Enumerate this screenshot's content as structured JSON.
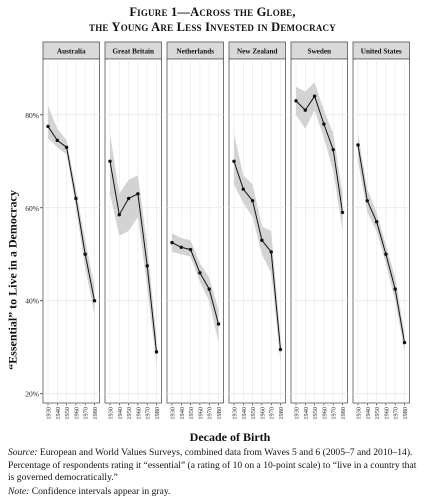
{
  "figure": {
    "title_line1": "Figure 1—Across the Globe,",
    "title_line2": "the Young Are Less Invested in Democracy",
    "source_label": "Source:",
    "source_text": " European and World Values Surveys, combined data from Waves 5 and 6 (2005–7 and 2010–14). Percentage of respondents rating it “essential” (a rating of 10 on a 10-point scale) to “live in a country that is governed democratically.”",
    "note_label": "Note:",
    "note_text": " Confidence intervals appear in gray."
  },
  "colors": {
    "confidence_band": "#d3d3d3",
    "line": "#111111",
    "panel_header": "#d9d9d9",
    "gridline": "#e6e6e6"
  },
  "chart_data": {
    "type": "line",
    "xlabel": "Decade of Birth",
    "ylabel": "“Essential” to Live in a Democracy",
    "ylim": [
      18,
      92
    ],
    "yticks": [
      20,
      40,
      60,
      80
    ],
    "ytick_labels": [
      "20%",
      "40%",
      "60%",
      "80%"
    ],
    "x": [
      "1930",
      "1940",
      "1950",
      "1960",
      "1970",
      "1980"
    ],
    "grid": true,
    "series": [
      {
        "name": "Australia",
        "values": [
          77.5,
          74.5,
          73,
          62,
          50,
          40
        ],
        "ci_low": [
          75,
          73,
          71.5,
          60,
          47,
          37
        ],
        "ci_high": [
          82,
          77,
          74.5,
          64,
          53,
          43
        ]
      },
      {
        "name": "Great Britain",
        "values": [
          70,
          58.5,
          62,
          63,
          47.5,
          29
        ],
        "ci_low": [
          63,
          54,
          55,
          58,
          43,
          26
        ],
        "ci_high": [
          76,
          63,
          66,
          67,
          52,
          32
        ]
      },
      {
        "name": "Netherlands",
        "values": [
          52.5,
          51.5,
          51,
          46,
          42.5,
          35
        ],
        "ci_low": [
          50.5,
          50,
          49.5,
          44,
          40,
          31
        ],
        "ci_high": [
          54.5,
          53.5,
          53,
          48,
          45,
          38
        ]
      },
      {
        "name": "New Zealand",
        "values": [
          70,
          64,
          61.5,
          53,
          50.5,
          29.5
        ],
        "ci_low": [
          65,
          61,
          58,
          50,
          46,
          27
        ],
        "ci_high": [
          76,
          67,
          65,
          56,
          55,
          32
        ]
      },
      {
        "name": "Sweden",
        "values": [
          83,
          81,
          84,
          78,
          72.5,
          59
        ],
        "ci_low": [
          80,
          77,
          81,
          75,
          68,
          55
        ],
        "ci_high": [
          86,
          85,
          87,
          81,
          76,
          63
        ]
      },
      {
        "name": "United States",
        "values": [
          73.5,
          61.5,
          57,
          50,
          42.5,
          31
        ],
        "ci_low": [
          70,
          59,
          55,
          48,
          40,
          29
        ],
        "ci_high": [
          76,
          64,
          59,
          52,
          45,
          33
        ]
      }
    ]
  }
}
